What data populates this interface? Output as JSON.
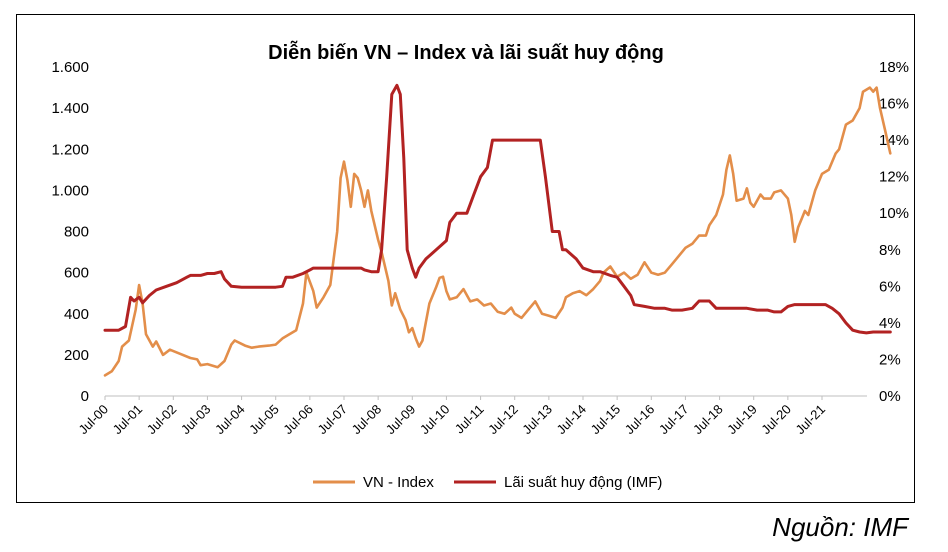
{
  "chart_data": {
    "type": "line",
    "title": "Diễn biến VN – Index và lãi suất huy động",
    "source": "Nguồn: IMF",
    "x_categories": [
      "Jul-00",
      "Jul-01",
      "Jul-02",
      "Jul-03",
      "Jul-04",
      "Jul-05",
      "Jul-06",
      "Jul-07",
      "Jul-08",
      "Jul-09",
      "Jul-10",
      "Jul-11",
      "Jul-12",
      "Jul-13",
      "Jul-14",
      "Jul-15",
      "Jul-16",
      "Jul-17",
      "Jul-18",
      "Jul-19",
      "Jul-20",
      "Jul-21"
    ],
    "y_left": {
      "min": 0,
      "max": 1600,
      "ticks": [
        0,
        200,
        400,
        600,
        800,
        1000,
        1200,
        1400,
        1600
      ],
      "tick_labels": [
        "0",
        "200",
        "400",
        "600",
        "800",
        "1.000",
        "1.200",
        "1.400",
        "1.600"
      ]
    },
    "y_right": {
      "min": 0,
      "max": 18,
      "ticks": [
        0,
        2,
        4,
        6,
        8,
        10,
        12,
        14,
        16,
        18
      ],
      "tick_labels": [
        "0%",
        "2%",
        "4%",
        "6%",
        "8%",
        "10%",
        "12%",
        "14%",
        "16%",
        "18%"
      ]
    },
    "series": [
      {
        "name": "VN - Index",
        "axis": "left",
        "color": "#E38E4A",
        "points": [
          [
            2000.5,
            100
          ],
          [
            2000.7,
            120
          ],
          [
            2000.9,
            170
          ],
          [
            2001.0,
            240
          ],
          [
            2001.2,
            270
          ],
          [
            2001.4,
            420
          ],
          [
            2001.5,
            540
          ],
          [
            2001.6,
            450
          ],
          [
            2001.7,
            300
          ],
          [
            2001.9,
            240
          ],
          [
            2002.0,
            265
          ],
          [
            2002.2,
            200
          ],
          [
            2002.4,
            225
          ],
          [
            2002.7,
            205
          ],
          [
            2003.0,
            185
          ],
          [
            2003.2,
            178
          ],
          [
            2003.3,
            150
          ],
          [
            2003.5,
            155
          ],
          [
            2003.8,
            140
          ],
          [
            2004.0,
            170
          ],
          [
            2004.2,
            250
          ],
          [
            2004.3,
            270
          ],
          [
            2004.6,
            245
          ],
          [
            2004.8,
            235
          ],
          [
            2005.0,
            240
          ],
          [
            2005.3,
            245
          ],
          [
            2005.5,
            250
          ],
          [
            2005.7,
            280
          ],
          [
            2005.9,
            300
          ],
          [
            2006.1,
            320
          ],
          [
            2006.3,
            450
          ],
          [
            2006.4,
            600
          ],
          [
            2006.6,
            510
          ],
          [
            2006.7,
            430
          ],
          [
            2006.9,
            480
          ],
          [
            2007.1,
            540
          ],
          [
            2007.3,
            800
          ],
          [
            2007.4,
            1060
          ],
          [
            2007.5,
            1140
          ],
          [
            2007.6,
            1050
          ],
          [
            2007.7,
            920
          ],
          [
            2007.8,
            1080
          ],
          [
            2007.9,
            1060
          ],
          [
            2008.0,
            1000
          ],
          [
            2008.1,
            920
          ],
          [
            2008.2,
            1000
          ],
          [
            2008.3,
            900
          ],
          [
            2008.5,
            760
          ],
          [
            2008.6,
            700
          ],
          [
            2008.8,
            560
          ],
          [
            2008.9,
            440
          ],
          [
            2009.0,
            500
          ],
          [
            2009.15,
            420
          ],
          [
            2009.3,
            370
          ],
          [
            2009.4,
            310
          ],
          [
            2009.5,
            330
          ],
          [
            2009.6,
            280
          ],
          [
            2009.7,
            240
          ],
          [
            2009.8,
            270
          ],
          [
            2009.9,
            360
          ],
          [
            2010.0,
            450
          ],
          [
            2010.2,
            530
          ],
          [
            2010.3,
            575
          ],
          [
            2010.4,
            580
          ],
          [
            2010.5,
            510
          ],
          [
            2010.6,
            470
          ],
          [
            2010.8,
            480
          ],
          [
            2011.0,
            520
          ],
          [
            2011.2,
            460
          ],
          [
            2011.4,
            470
          ],
          [
            2011.6,
            440
          ],
          [
            2011.8,
            450
          ],
          [
            2012.0,
            410
          ],
          [
            2012.2,
            400
          ],
          [
            2012.4,
            430
          ],
          [
            2012.5,
            400
          ],
          [
            2012.7,
            380
          ],
          [
            2012.9,
            420
          ],
          [
            2013.1,
            460
          ],
          [
            2013.3,
            400
          ],
          [
            2013.5,
            390
          ],
          [
            2013.7,
            380
          ],
          [
            2013.9,
            430
          ],
          [
            2014.0,
            480
          ],
          [
            2014.2,
            500
          ],
          [
            2014.4,
            510
          ],
          [
            2014.6,
            490
          ],
          [
            2014.8,
            520
          ],
          [
            2015.0,
            560
          ],
          [
            2015.1,
            600
          ],
          [
            2015.3,
            630
          ],
          [
            2015.5,
            580
          ],
          [
            2015.7,
            600
          ],
          [
            2015.9,
            570
          ],
          [
            2016.1,
            590
          ],
          [
            2016.3,
            650
          ],
          [
            2016.5,
            600
          ],
          [
            2016.7,
            590
          ],
          [
            2016.9,
            600
          ],
          [
            2017.1,
            640
          ],
          [
            2017.3,
            680
          ],
          [
            2017.5,
            720
          ],
          [
            2017.7,
            740
          ],
          [
            2017.9,
            780
          ],
          [
            2018.1,
            780
          ],
          [
            2018.2,
            830
          ],
          [
            2018.4,
            880
          ],
          [
            2018.6,
            980
          ],
          [
            2018.7,
            1100
          ],
          [
            2018.8,
            1170
          ],
          [
            2018.9,
            1080
          ],
          [
            2019.0,
            950
          ],
          [
            2019.2,
            960
          ],
          [
            2019.3,
            1010
          ],
          [
            2019.4,
            940
          ],
          [
            2019.5,
            920
          ],
          [
            2019.7,
            980
          ],
          [
            2019.8,
            960
          ],
          [
            2020.0,
            960
          ],
          [
            2020.1,
            990
          ],
          [
            2020.3,
            1000
          ],
          [
            2020.5,
            960
          ],
          [
            2020.6,
            880
          ],
          [
            2020.7,
            750
          ],
          [
            2020.8,
            820
          ],
          [
            2020.9,
            860
          ],
          [
            2021.0,
            900
          ],
          [
            2021.1,
            880
          ],
          [
            2021.3,
            1000
          ],
          [
            2021.5,
            1080
          ],
          [
            2021.7,
            1100
          ],
          [
            2021.9,
            1180
          ],
          [
            2022.0,
            1200
          ],
          [
            2022.2,
            1320
          ],
          [
            2022.4,
            1340
          ],
          [
            2022.6,
            1400
          ],
          [
            2022.7,
            1480
          ],
          [
            2022.9,
            1500
          ],
          [
            2023.0,
            1480
          ],
          [
            2023.1,
            1500
          ],
          [
            2023.2,
            1400
          ],
          [
            2023.35,
            1290
          ],
          [
            2023.5,
            1180
          ]
        ]
      },
      {
        "name": "Lãi suất huy động (IMF)",
        "axis": "right",
        "color": "#B22222",
        "points": [
          [
            2000.5,
            3.6
          ],
          [
            2000.9,
            3.6
          ],
          [
            2001.1,
            3.8
          ],
          [
            2001.25,
            5.4
          ],
          [
            2001.35,
            5.2
          ],
          [
            2001.5,
            5.4
          ],
          [
            2001.6,
            5.1
          ],
          [
            2001.8,
            5.5
          ],
          [
            2002.0,
            5.8
          ],
          [
            2002.3,
            6.0
          ],
          [
            2002.6,
            6.2
          ],
          [
            2002.9,
            6.5
          ],
          [
            2003.0,
            6.6
          ],
          [
            2003.3,
            6.6
          ],
          [
            2003.5,
            6.7
          ],
          [
            2003.7,
            6.7
          ],
          [
            2003.9,
            6.8
          ],
          [
            2004.0,
            6.4
          ],
          [
            2004.2,
            6.0
          ],
          [
            2004.5,
            5.95
          ],
          [
            2005.0,
            5.95
          ],
          [
            2005.5,
            5.95
          ],
          [
            2005.7,
            6.0
          ],
          [
            2005.8,
            6.5
          ],
          [
            2006.0,
            6.5
          ],
          [
            2006.3,
            6.7
          ],
          [
            2006.5,
            6.9
          ],
          [
            2006.6,
            7.0
          ],
          [
            2007.0,
            7.0
          ],
          [
            2007.5,
            7.0
          ],
          [
            2008.0,
            7.0
          ],
          [
            2008.1,
            6.9
          ],
          [
            2008.3,
            6.8
          ],
          [
            2008.5,
            6.8
          ],
          [
            2008.6,
            8.0
          ],
          [
            2008.75,
            12.0
          ],
          [
            2008.9,
            16.5
          ],
          [
            2009.05,
            17.0
          ],
          [
            2009.15,
            16.5
          ],
          [
            2009.25,
            13.0
          ],
          [
            2009.35,
            8.0
          ],
          [
            2009.5,
            7.0
          ],
          [
            2009.6,
            6.5
          ],
          [
            2009.7,
            7.0
          ],
          [
            2009.9,
            7.5
          ],
          [
            2010.2,
            8.0
          ],
          [
            2010.5,
            8.5
          ],
          [
            2010.6,
            9.5
          ],
          [
            2010.8,
            10.0
          ],
          [
            2011.1,
            10.0
          ],
          [
            2011.3,
            11.0
          ],
          [
            2011.5,
            12.0
          ],
          [
            2011.7,
            12.5
          ],
          [
            2011.85,
            14.0
          ],
          [
            2012.0,
            14.0
          ],
          [
            2012.5,
            14.0
          ],
          [
            2013.0,
            14.0
          ],
          [
            2013.25,
            14.0
          ],
          [
            2013.4,
            12.0
          ],
          [
            2013.6,
            9.0
          ],
          [
            2013.8,
            9.0
          ],
          [
            2013.9,
            8.0
          ],
          [
            2014.0,
            8.0
          ],
          [
            2014.3,
            7.5
          ],
          [
            2014.5,
            7.0
          ],
          [
            2014.8,
            6.8
          ],
          [
            2015.0,
            6.8
          ],
          [
            2015.3,
            6.6
          ],
          [
            2015.5,
            6.5
          ],
          [
            2015.7,
            6.0
          ],
          [
            2015.9,
            5.5
          ],
          [
            2016.0,
            5.0
          ],
          [
            2016.3,
            4.9
          ],
          [
            2016.6,
            4.8
          ],
          [
            2016.9,
            4.8
          ],
          [
            2017.1,
            4.7
          ],
          [
            2017.4,
            4.7
          ],
          [
            2017.7,
            4.8
          ],
          [
            2017.9,
            5.2
          ],
          [
            2018.2,
            5.2
          ],
          [
            2018.4,
            4.8
          ],
          [
            2018.7,
            4.8
          ],
          [
            2019.0,
            4.8
          ],
          [
            2019.3,
            4.8
          ],
          [
            2019.6,
            4.7
          ],
          [
            2019.9,
            4.7
          ],
          [
            2020.1,
            4.6
          ],
          [
            2020.3,
            4.6
          ],
          [
            2020.5,
            4.9
          ],
          [
            2020.7,
            5.0
          ],
          [
            2021.0,
            5.0
          ],
          [
            2021.3,
            5.0
          ],
          [
            2021.6,
            5.0
          ],
          [
            2021.8,
            4.8
          ],
          [
            2022.0,
            4.5
          ],
          [
            2022.2,
            4.0
          ],
          [
            2022.4,
            3.6
          ],
          [
            2022.6,
            3.5
          ],
          [
            2022.8,
            3.45
          ],
          [
            2023.0,
            3.5
          ],
          [
            2023.3,
            3.5
          ],
          [
            2023.5,
            3.5
          ]
        ]
      }
    ],
    "legend_position": "bottom",
    "grid": false
  }
}
